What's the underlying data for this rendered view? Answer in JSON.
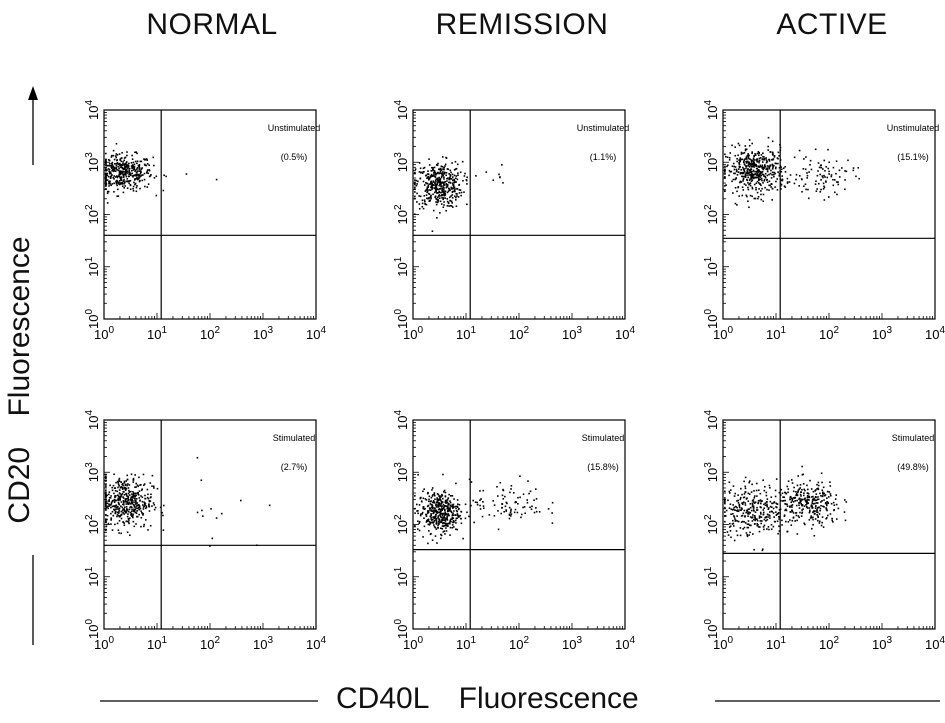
{
  "column_titles": [
    "NORMAL",
    "REMISSION",
    "ACTIVE"
  ],
  "y_axis_title": {
    "marker": "CD20",
    "text": "Fluorescence"
  },
  "x_axis_title": {
    "marker": "CD40L",
    "text": "Fluorescence"
  },
  "chart_data": [
    {
      "type": "scatter",
      "group": "NORMAL",
      "condition": "Unstimulated",
      "percent_label": "(0.5%)",
      "x_scale": "log",
      "y_scale": "log",
      "xlim": [
        1,
        10000
      ],
      "ylim": [
        1,
        10000
      ],
      "x_tick_labels": [
        "10^0",
        "10^1",
        "10^2",
        "10^3",
        "10^4"
      ],
      "y_tick_labels": [
        "10^0",
        "10^1",
        "10^2",
        "10^3",
        "10^4"
      ],
      "quadrant_gate": {
        "x": 12,
        "y": 40
      },
      "populations": [
        {
          "center": [
            2.2,
            650
          ],
          "spread": [
            0.28,
            0.17
          ],
          "count": 420
        },
        {
          "center": [
            40,
            600
          ],
          "spread": [
            0.6,
            0.1
          ],
          "count": 3
        }
      ]
    },
    {
      "type": "scatter",
      "group": "REMISSION",
      "condition": "Unstimulated",
      "percent_label": "(1.1%)",
      "x_scale": "log",
      "y_scale": "log",
      "xlim": [
        1,
        10000
      ],
      "ylim": [
        1,
        10000
      ],
      "x_tick_labels": [
        "10^0",
        "10^1",
        "10^2",
        "10^3",
        "10^4"
      ],
      "y_tick_labels": [
        "10^0",
        "10^1",
        "10^2",
        "10^3",
        "10^4"
      ],
      "quadrant_gate": {
        "x": 12,
        "y": 40
      },
      "populations": [
        {
          "center": [
            3.0,
            380
          ],
          "spread": [
            0.22,
            0.22
          ],
          "count": 420
        },
        {
          "center": [
            35,
            600
          ],
          "spread": [
            0.25,
            0.18
          ],
          "count": 7
        }
      ]
    },
    {
      "type": "scatter",
      "group": "ACTIVE",
      "condition": "Unstimulated",
      "percent_label": "(15.1%)",
      "x_scale": "log",
      "y_scale": "log",
      "xlim": [
        1,
        10000
      ],
      "ylim": [
        1,
        10000
      ],
      "x_tick_labels": [
        "10^0",
        "10^1",
        "10^2",
        "10^3",
        "10^4"
      ],
      "y_tick_labels": [
        "10^0",
        "10^1",
        "10^2",
        "10^3",
        "10^4"
      ],
      "quadrant_gate": {
        "x": 12,
        "y": 35
      },
      "populations": [
        {
          "center": [
            4.0,
            700
          ],
          "spread": [
            0.28,
            0.22
          ],
          "count": 480
        },
        {
          "center": [
            75,
            550
          ],
          "spread": [
            0.3,
            0.2
          ],
          "count": 90
        }
      ]
    },
    {
      "type": "scatter",
      "group": "NORMAL",
      "condition": "Stimulated",
      "percent_label": "(2.7%)",
      "x_scale": "log",
      "y_scale": "log",
      "xlim": [
        1,
        10000
      ],
      "ylim": [
        1,
        10000
      ],
      "x_tick_labels": [
        "10^0",
        "10^1",
        "10^2",
        "10^3",
        "10^4"
      ],
      "y_tick_labels": [
        "10^0",
        "10^1",
        "10^2",
        "10^3",
        "10^4"
      ],
      "quadrant_gate": {
        "x": 12,
        "y": 40
      },
      "populations": [
        {
          "center": [
            2.5,
            280
          ],
          "spread": [
            0.25,
            0.25
          ],
          "count": 450
        },
        {
          "center": [
            100,
            200
          ],
          "spread": [
            0.5,
            0.4
          ],
          "count": 14
        }
      ]
    },
    {
      "type": "scatter",
      "group": "REMISSION",
      "condition": "Stimulated",
      "percent_label": "(15.8%)",
      "x_scale": "log",
      "y_scale": "log",
      "xlim": [
        1,
        10000
      ],
      "ylim": [
        1,
        10000
      ],
      "x_tick_labels": [
        "10^0",
        "10^1",
        "10^2",
        "10^3",
        "10^4"
      ],
      "y_tick_labels": [
        "10^0",
        "10^1",
        "10^2",
        "10^3",
        "10^4"
      ],
      "quadrant_gate": {
        "x": 12,
        "y": 33
      },
      "populations": [
        {
          "center": [
            3.0,
            180
          ],
          "spread": [
            0.2,
            0.2
          ],
          "count": 420
        },
        {
          "center": [
            60,
            260
          ],
          "spread": [
            0.35,
            0.22
          ],
          "count": 90
        }
      ]
    },
    {
      "type": "scatter",
      "group": "ACTIVE",
      "condition": "Stimulated",
      "percent_label": "(49.8%)",
      "x_scale": "log",
      "y_scale": "log",
      "xlim": [
        1,
        10000
      ],
      "ylim": [
        1,
        10000
      ],
      "x_tick_labels": [
        "10^0",
        "10^1",
        "10^2",
        "10^3",
        "10^4"
      ],
      "y_tick_labels": [
        "10^0",
        "10^1",
        "10^2",
        "10^3",
        "10^4"
      ],
      "quadrant_gate": {
        "x": 12,
        "y": 28
      },
      "populations": [
        {
          "center": [
            3.5,
            200
          ],
          "spread": [
            0.3,
            0.25
          ],
          "count": 300
        },
        {
          "center": [
            40,
            250
          ],
          "spread": [
            0.3,
            0.22
          ],
          "count": 300
        }
      ]
    }
  ]
}
